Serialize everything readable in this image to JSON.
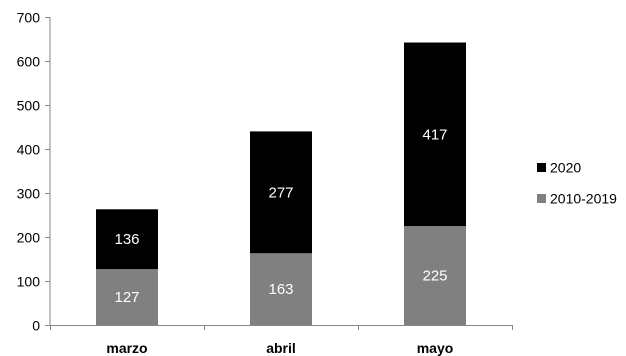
{
  "chart_data": {
    "type": "bar",
    "stacked": true,
    "categories": [
      "marzo",
      "abril",
      "mayo"
    ],
    "series": [
      {
        "name": "2010-2019",
        "values": [
          127,
          163,
          225
        ],
        "color": "#808080"
      },
      {
        "name": "2020",
        "values": [
          136,
          277,
          417
        ],
        "color": "#000000"
      }
    ],
    "ylim": [
      0,
      700
    ],
    "yticks": [
      0,
      100,
      200,
      300,
      400,
      500,
      600,
      700
    ],
    "grid": false,
    "legend_position": "right",
    "title": "",
    "xlabel": "",
    "ylabel": ""
  }
}
